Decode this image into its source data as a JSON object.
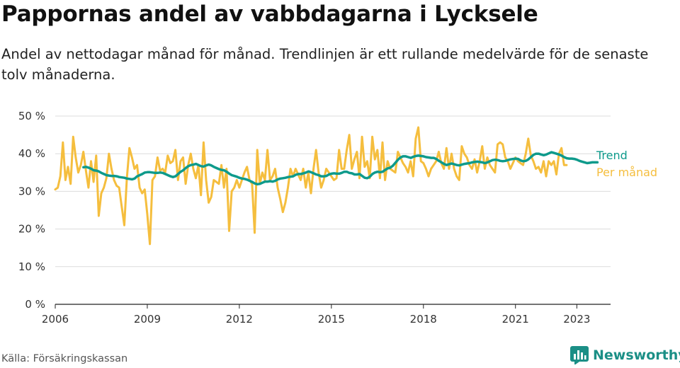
{
  "title": "Pappornas andel av vabbdagarna i Lycksele",
  "subtitle": "Andel av nettodagar månad för månad. Trendlinjen är ett rullande medelvärde för de senaste tolv månaderna.",
  "source": "Källa: Försäkringskassan",
  "brand": {
    "name": "Newsworthy",
    "color": "#1b8f86",
    "icon": "newsworthy-bar-chart-icon"
  },
  "chart_data": {
    "type": "line",
    "x_unit": "date (year.fraction)",
    "xlim": [
      2006,
      2024.1
    ],
    "ylim": [
      0,
      50
    ],
    "y_ticks": [
      0,
      10,
      20,
      30,
      40,
      50
    ],
    "y_tick_labels": [
      "0 %",
      "10 %",
      "20 %",
      "30 %",
      "40 %",
      "50 %"
    ],
    "x_ticks": [
      2006,
      2009,
      2012,
      2015,
      2018,
      2021,
      2023
    ],
    "x_tick_labels": [
      "2006",
      "2009",
      "2012",
      "2015",
      "2018",
      "2021",
      "2023"
    ],
    "grid": true,
    "legend_placement": "right (end of lines)",
    "series": [
      {
        "name": "Per månad",
        "color": "#f5be3e",
        "x_start": 2006.0,
        "x_step": 0.083333,
        "values": [
          30.5,
          31,
          34,
          43,
          33,
          36.5,
          32,
          44.5,
          39,
          35,
          37,
          40.5,
          35.5,
          31,
          38,
          32.5,
          39.5,
          23.5,
          29.5,
          31,
          33.5,
          40,
          36,
          33,
          31.5,
          31,
          26,
          21,
          33.5,
          41.5,
          39,
          36,
          37,
          31,
          29.5,
          30.5,
          24,
          16,
          33,
          34,
          39,
          35.5,
          36,
          35,
          39.5,
          37.5,
          38,
          41,
          33,
          38,
          39,
          32,
          37,
          40,
          36,
          33.5,
          37,
          29,
          43,
          33,
          27,
          28.5,
          33,
          32.5,
          32,
          37,
          31,
          36,
          19.5,
          30,
          31,
          33,
          31,
          33,
          35,
          36.5,
          33,
          32,
          19,
          41,
          32,
          35,
          33,
          41,
          33,
          34,
          36,
          31,
          28,
          24.5,
          27,
          31,
          36,
          34,
          36,
          34.5,
          33,
          36,
          31,
          35,
          29.5,
          36,
          41,
          35,
          31,
          33,
          36,
          35,
          34,
          33,
          33.5,
          41,
          36,
          36,
          41,
          45,
          36,
          38.5,
          40.5,
          33.5,
          44.5,
          36.5,
          38,
          33.5,
          44.5,
          38.5,
          41,
          33.5,
          43,
          33,
          38,
          36,
          35.5,
          35,
          40.5,
          39,
          37.5,
          36.5,
          35,
          38,
          34,
          44,
          47,
          38,
          37.5,
          36,
          34,
          36,
          37,
          38,
          40.5,
          37.5,
          36,
          41.5,
          36,
          40,
          36,
          34,
          33,
          42,
          40,
          39,
          37,
          36,
          38.5,
          35,
          38,
          42,
          36,
          39,
          37,
          36,
          35,
          42.5,
          43,
          42.5,
          39,
          38,
          36,
          37.5,
          39,
          38,
          37.5,
          37,
          40,
          44,
          39.5,
          38,
          36,
          36.5,
          35,
          38,
          34,
          38,
          37,
          38,
          34.5,
          40,
          41.5,
          37,
          37
        ]
      },
      {
        "name": "Trend",
        "color": "#0e9a8b",
        "x_start": 2006.92,
        "x_step": 0.083333,
        "values": [
          36.4,
          36.5,
          36.3,
          36,
          35.6,
          35.5,
          35.3,
          34.9,
          34.6,
          34.3,
          34.2,
          34.1,
          34.1,
          34,
          33.8,
          33.7,
          33.6,
          33.4,
          33.3,
          33.2,
          33.4,
          34,
          34.3,
          34.6,
          35,
          35.1,
          35.1,
          35,
          34.9,
          34.9,
          35,
          34.9,
          34.6,
          34.3,
          34,
          33.8,
          34,
          34.6,
          35.2,
          35.6,
          36.2,
          36.7,
          37,
          37.1,
          37.3,
          37,
          36.7,
          36.6,
          36.9,
          37.1,
          36.9,
          36.5,
          36.2,
          35.9,
          35.7,
          35.6,
          35.2,
          34.7,
          34.3,
          34.1,
          33.9,
          33.6,
          33.4,
          33.3,
          33.1,
          32.8,
          32.5,
          32.1,
          31.9,
          32,
          32.3,
          32.6,
          32.6,
          32.7,
          32.6,
          32.8,
          33.2,
          33.4,
          33.5,
          33.6,
          33.8,
          33.9,
          34,
          34.4,
          34.6,
          34.6,
          34.8,
          35,
          35.3,
          35.1,
          34.8,
          34.5,
          34.3,
          34,
          34,
          34.1,
          34.5,
          34.7,
          34.8,
          34.7,
          34.7,
          34.9,
          35.2,
          35.2,
          34.9,
          34.8,
          34.5,
          34.5,
          34.6,
          34.1,
          33.6,
          33.5,
          33.9,
          34.6,
          35,
          35.2,
          35.1,
          35.2,
          35.7,
          36.1,
          36.3,
          36.8,
          37.6,
          38.4,
          39,
          39.3,
          39.3,
          39.1,
          38.9,
          39.2,
          39.4,
          39.5,
          39.4,
          39.3,
          39.1,
          39,
          38.9,
          38.9,
          38.6,
          38.1,
          37.7,
          37.3,
          37,
          37.2,
          37.4,
          37.2,
          37,
          36.9,
          37.1,
          37.3,
          37.4,
          37.5,
          37.7,
          37.8,
          37.9,
          37.8,
          37.7,
          37.5,
          37.7,
          38,
          38.3,
          38.4,
          38.3,
          38.1,
          38,
          38.1,
          38.3,
          38.5,
          38.6,
          38.7,
          38.6,
          38.2,
          38,
          38.1,
          38.5,
          39.1,
          39.7,
          40,
          40,
          39.8,
          39.6,
          39.8,
          40.1,
          40.4,
          40.2,
          40,
          39.8,
          39.5,
          39.1,
          38.8,
          38.7,
          38.7,
          38.6,
          38.4,
          38.1,
          37.9,
          37.7,
          37.5,
          37.6,
          37.7,
          37.7,
          37.7
        ]
      }
    ]
  }
}
